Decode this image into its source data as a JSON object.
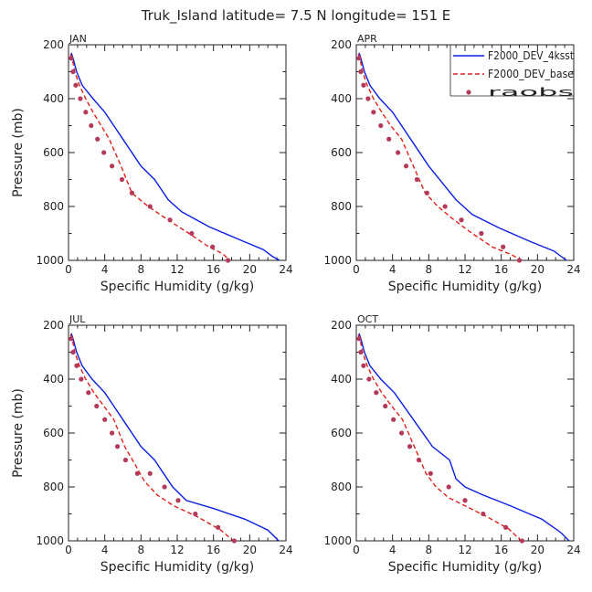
{
  "figure": {
    "title": "Truk_Island  latitude= 7.5 N longitude= 151 E"
  },
  "legend": {
    "placement": "top-right of APR panel",
    "entries": [
      {
        "label": "F2000_DEV_4ksst",
        "style": "solid",
        "color": "#0b1fe0"
      },
      {
        "label": "F2000_DEV_base",
        "style": "dashed",
        "color": "#e0201b"
      },
      {
        "label": "raobs",
        "style": "dots",
        "color": "#b43a5a"
      }
    ]
  },
  "colors": {
    "solid": "#0b1fe0",
    "dashed": "#e0201b",
    "dots": "#b43a5a"
  },
  "chart_data": [
    {
      "type": "line",
      "panel": "JAN",
      "xlabel": "Specific Humidity (g/kg)",
      "ylabel": "Pressure (mb)",
      "xlim": [
        0,
        24
      ],
      "ylim": [
        1000,
        200
      ],
      "xticks": [
        "0",
        "4",
        "8",
        "12",
        "16",
        "20",
        "24"
      ],
      "yticks": [
        "200",
        "400",
        "600",
        "800",
        "1000"
      ],
      "series": [
        {
          "name": "F2000_DEV_4ksst",
          "style": "solid",
          "x": [
            0.3,
            0.5,
            0.9,
            1.5,
            2.7,
            4.0,
            6.0,
            8.0,
            9.5,
            11.0,
            12.5,
            15.5,
            19.0,
            21.5,
            22.5,
            23.3
          ],
          "y": [
            230,
            250,
            300,
            350,
            400,
            450,
            550,
            650,
            700,
            775,
            820,
            875,
            925,
            960,
            985,
            1000
          ]
        },
        {
          "name": "F2000_DEV_base",
          "style": "dashed",
          "x": [
            0.2,
            0.4,
            0.7,
            1.2,
            1.9,
            2.7,
            3.6,
            4.5,
            5.8,
            7.0,
            8.8,
            11.0,
            13.3,
            15.5,
            17.0,
            17.8
          ],
          "y": [
            235,
            250,
            300,
            350,
            400,
            450,
            500,
            550,
            650,
            750,
            800,
            850,
            900,
            950,
            975,
            1000
          ]
        },
        {
          "name": "raobs",
          "style": "dots",
          "x": [
            0.3,
            0.5,
            0.8,
            1.3,
            1.9,
            2.5,
            3.2,
            3.9,
            4.8,
            5.9,
            7.0,
            9.0,
            11.2,
            13.6,
            15.9,
            17.6
          ],
          "y": [
            250,
            300,
            350,
            400,
            450,
            500,
            550,
            600,
            650,
            700,
            750,
            800,
            850,
            900,
            950,
            1000
          ]
        }
      ]
    },
    {
      "type": "line",
      "panel": "APR",
      "xlabel": "Specific Humidity (g/kg)",
      "ylabel": "",
      "xlim": [
        0,
        24
      ],
      "ylim": [
        1000,
        200
      ],
      "xticks": [
        "0",
        "4",
        "8",
        "12",
        "16",
        "20",
        "24"
      ],
      "yticks": [
        "200",
        "400",
        "600",
        "800",
        "1000"
      ],
      "series": [
        {
          "name": "F2000_DEV_4ksst",
          "style": "solid",
          "x": [
            0.3,
            0.5,
            0.9,
            1.5,
            2.6,
            4.0,
            6.0,
            8.0,
            9.8,
            11.0,
            12.8,
            15.8,
            19.2,
            21.8,
            23.2
          ],
          "y": [
            230,
            250,
            300,
            350,
            400,
            450,
            550,
            650,
            725,
            775,
            830,
            880,
            930,
            965,
            1000
          ]
        },
        {
          "name": "F2000_DEV_base",
          "style": "dashed",
          "x": [
            0.2,
            0.4,
            0.7,
            1.2,
            1.9,
            2.8,
            3.8,
            5.0,
            6.3,
            7.6,
            9.0,
            10.8,
            12.8,
            15.0,
            17.2,
            18.2
          ],
          "y": [
            235,
            250,
            300,
            350,
            400,
            450,
            500,
            550,
            650,
            750,
            800,
            850,
            900,
            950,
            980,
            1000
          ]
        },
        {
          "name": "raobs",
          "style": "dots",
          "x": [
            0.3,
            0.5,
            0.8,
            1.3,
            1.9,
            2.7,
            3.6,
            4.6,
            5.5,
            6.7,
            7.8,
            9.8,
            11.6,
            13.8,
            16.2,
            18.0
          ],
          "y": [
            250,
            300,
            350,
            400,
            450,
            500,
            550,
            600,
            650,
            700,
            750,
            800,
            850,
            900,
            950,
            1000
          ]
        }
      ]
    },
    {
      "type": "line",
      "panel": "JUL",
      "xlabel": "Specific Humidity (g/kg)",
      "ylabel": "Pressure (mb)",
      "xlim": [
        0,
        24
      ],
      "ylim": [
        1000,
        200
      ],
      "xticks": [
        "0",
        "4",
        "8",
        "12",
        "16",
        "20",
        "24"
      ],
      "yticks": [
        "200",
        "400",
        "600",
        "800",
        "1000"
      ],
      "series": [
        {
          "name": "F2000_DEV_4ksst",
          "style": "solid",
          "x": [
            0.3,
            0.5,
            0.9,
            1.5,
            2.6,
            4.0,
            6.0,
            8.0,
            9.5,
            10.5,
            11.5,
            13.0,
            16.0,
            19.5,
            22.0,
            23.2
          ],
          "y": [
            230,
            250,
            300,
            350,
            400,
            450,
            550,
            650,
            700,
            750,
            800,
            850,
            880,
            920,
            960,
            1000
          ]
        },
        {
          "name": "F2000_DEV_base",
          "style": "dashed",
          "x": [
            0.2,
            0.4,
            0.7,
            1.2,
            1.9,
            2.8,
            3.9,
            5.0,
            6.2,
            7.4,
            8.4,
            9.8,
            11.6,
            14.2,
            16.8,
            18.2
          ],
          "y": [
            235,
            250,
            300,
            350,
            400,
            450,
            500,
            550,
            650,
            720,
            780,
            830,
            870,
            910,
            960,
            1000
          ]
        },
        {
          "name": "raobs",
          "style": "dots",
          "x": [
            0.3,
            0.5,
            0.9,
            1.4,
            2.2,
            3.1,
            4.0,
            4.8,
            5.4,
            6.3,
            7.6,
            9.0,
            10.6,
            12.1,
            14.0,
            16.5,
            18.3
          ],
          "y": [
            250,
            300,
            350,
            400,
            450,
            500,
            550,
            600,
            650,
            700,
            750,
            750,
            800,
            850,
            900,
            950,
            1000
          ]
        }
      ]
    },
    {
      "type": "line",
      "panel": "OCT",
      "xlabel": "Specific Humidity (g/kg)",
      "ylabel": "",
      "xlim": [
        0,
        24
      ],
      "ylim": [
        1000,
        200
      ],
      "xticks": [
        "0",
        "4",
        "8",
        "12",
        "16",
        "20",
        "24"
      ],
      "yticks": [
        "200",
        "400",
        "600",
        "800",
        "1000"
      ],
      "series": [
        {
          "name": "F2000_DEV_4ksst",
          "style": "solid",
          "x": [
            0.3,
            0.5,
            0.9,
            1.5,
            2.7,
            4.2,
            6.3,
            8.4,
            10.3,
            11.0,
            12.0,
            14.0,
            17.0,
            20.5,
            22.6,
            23.5
          ],
          "y": [
            230,
            250,
            300,
            350,
            400,
            450,
            550,
            650,
            700,
            770,
            800,
            830,
            870,
            920,
            970,
            1000
          ]
        },
        {
          "name": "F2000_DEV_base",
          "style": "dashed",
          "x": [
            0.2,
            0.4,
            0.7,
            1.2,
            1.9,
            2.8,
            3.9,
            5.1,
            6.4,
            7.7,
            8.8,
            10.2,
            12.0,
            14.4,
            16.8,
            18.2
          ],
          "y": [
            235,
            250,
            300,
            350,
            400,
            450,
            500,
            550,
            650,
            750,
            800,
            840,
            870,
            910,
            955,
            1000
          ]
        },
        {
          "name": "raobs",
          "style": "dots",
          "x": [
            0.3,
            0.5,
            0.8,
            1.4,
            2.2,
            3.2,
            4.1,
            5.0,
            5.9,
            6.9,
            8.2,
            10.2,
            12.0,
            14.0,
            16.5,
            18.3
          ],
          "y": [
            250,
            300,
            350,
            400,
            450,
            500,
            550,
            600,
            650,
            700,
            750,
            800,
            850,
            900,
            950,
            1000
          ]
        }
      ]
    }
  ]
}
